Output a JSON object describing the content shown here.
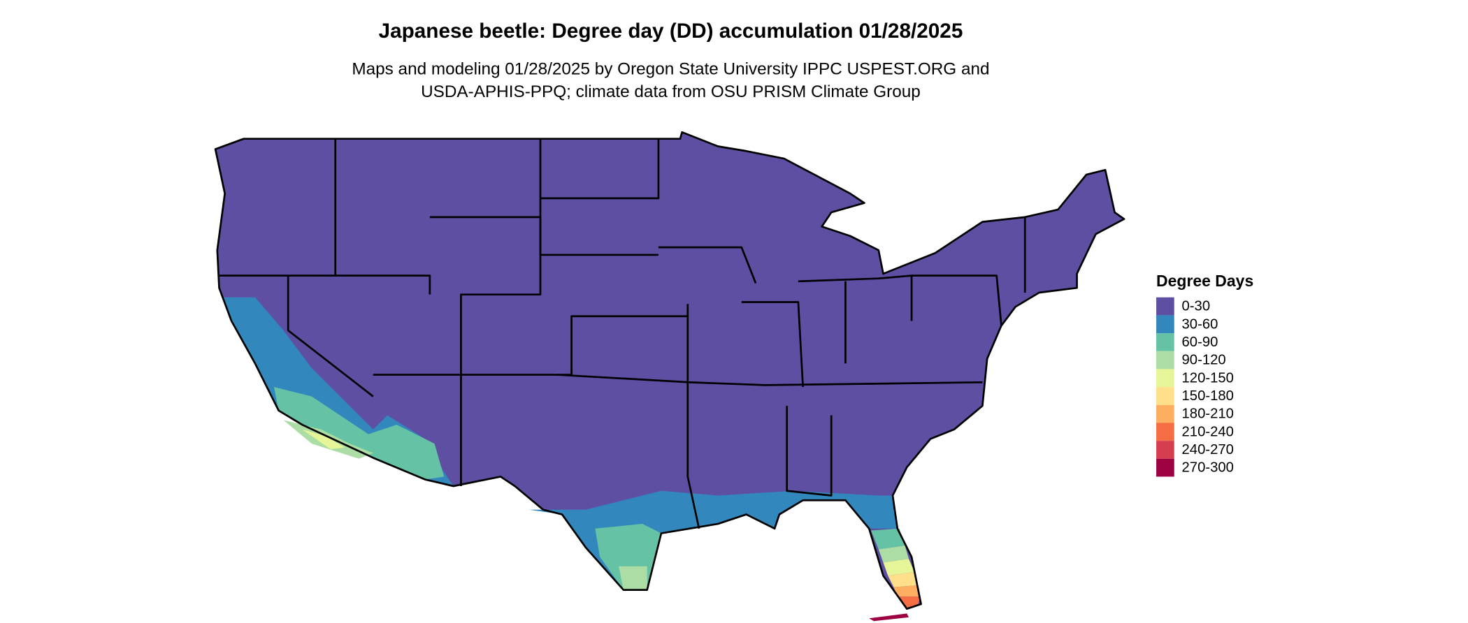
{
  "title": "Japanese beetle: Degree day (DD) accumulation 01/28/2025",
  "subtitle": [
    "Maps and modeling 01/28/2025 by Oregon State University IPPC USPEST.ORG and",
    "USDA-APHIS-PPQ; climate data from OSU PRISM Climate Group"
  ],
  "legend": {
    "title": "Degree Days",
    "items": [
      {
        "label": "0-30",
        "color": "#5e4fa2"
      },
      {
        "label": "30-60",
        "color": "#3288bd"
      },
      {
        "label": "60-90",
        "color": "#66c2a5"
      },
      {
        "label": "90-120",
        "color": "#abdda4"
      },
      {
        "label": "120-150",
        "color": "#e6f598"
      },
      {
        "label": "150-180",
        "color": "#fee08b"
      },
      {
        "label": "180-210",
        "color": "#fdae61"
      },
      {
        "label": "210-240",
        "color": "#f46d43"
      },
      {
        "label": "240-270",
        "color": "#d53e4f"
      },
      {
        "label": "270-300",
        "color": "#9e0142"
      }
    ]
  }
}
